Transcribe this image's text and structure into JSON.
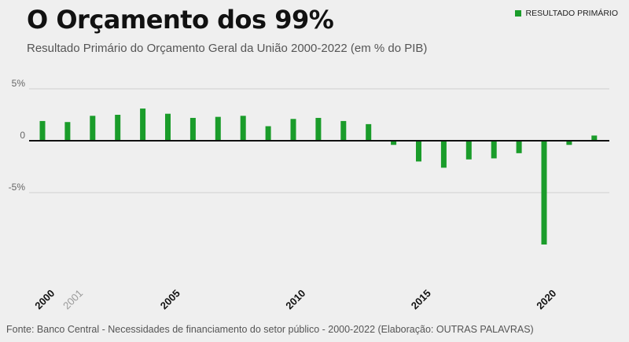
{
  "header": {
    "title": "O Orçamento dos 99%",
    "subtitle": "Resultado Primário do Orçamento Geral da União 2000-2022 (em % do PIB)"
  },
  "legend": {
    "label": "RESULTADO PRIMÁRIO",
    "color": "#1a9c2a"
  },
  "footer": {
    "source": "Fonte: Banco Central - Necessidades de financiamento do setor público - 2000-2022 (Elaboração: OUTRAS PALAVRAS)"
  },
  "colors": {
    "bar": "#1a9c2a",
    "zero_line": "#111111",
    "grid": "#cfcfcf",
    "background": "#efefef"
  },
  "chart_data": {
    "type": "bar",
    "title": "O Orçamento dos 99%",
    "subtitle": "Resultado Primário do Orçamento Geral da União 2000-2022 (em % do PIB)",
    "xlabel": "",
    "ylabel": "",
    "ylim": [
      -13,
      5
    ],
    "y_ticks": [
      {
        "value": 5,
        "label": "5%"
      },
      {
        "value": 0,
        "label": "0"
      },
      {
        "value": -5,
        "label": "-5%"
      }
    ],
    "grid": true,
    "legend_position": "top-right",
    "categories": [
      "2000",
      "2001",
      "2002",
      "2003",
      "2004",
      "2005",
      "2006",
      "2007",
      "2008",
      "2009",
      "2010",
      "2011",
      "2012",
      "2013",
      "2014",
      "2015",
      "2016",
      "2017",
      "2018",
      "2019",
      "2020",
      "2021",
      "2022"
    ],
    "x_labels": [
      {
        "text": "2000",
        "bold": true,
        "rotated": true
      },
      {
        "text": "2001",
        "bold": false,
        "rotated": false
      },
      {
        "text": "2005",
        "bold": true,
        "rotated": true
      },
      {
        "text": "2010",
        "bold": true,
        "rotated": true
      },
      {
        "text": "2015",
        "bold": true,
        "rotated": true
      },
      {
        "text": "2020",
        "bold": true,
        "rotated": true
      }
    ],
    "series": [
      {
        "name": "RESULTADO PRIMÁRIO",
        "values": [
          1.9,
          1.8,
          2.4,
          2.5,
          3.1,
          2.6,
          2.2,
          2.3,
          2.4,
          1.4,
          2.1,
          2.2,
          1.9,
          1.6,
          -0.4,
          -2.0,
          -2.6,
          -1.8,
          -1.7,
          -1.2,
          -10.0,
          -0.4,
          0.5
        ]
      }
    ]
  }
}
